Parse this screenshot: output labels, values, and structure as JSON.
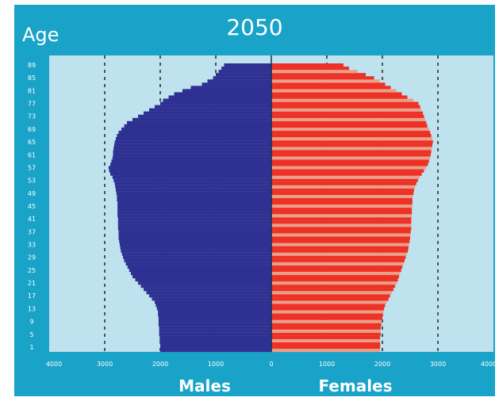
{
  "chart_data": {
    "type": "bar",
    "subtype": "population-pyramid",
    "title": "2050",
    "ylabel": "Age",
    "xlabel_left": "Males",
    "xlabel_right": "Females",
    "xlim": [
      -4000,
      4000
    ],
    "x_ticks": [
      {
        "value": -4000,
        "label": "4000"
      },
      {
        "value": -3000,
        "label": "3000"
      },
      {
        "value": -2000,
        "label": "2000"
      },
      {
        "value": -1000,
        "label": "1000"
      },
      {
        "value": 0,
        "label": "0"
      },
      {
        "value": 1000,
        "label": "1000"
      },
      {
        "value": 2000,
        "label": "2000"
      },
      {
        "value": 3000,
        "label": "3000"
      },
      {
        "value": 4000,
        "label": "4000"
      }
    ],
    "age_tick_labels": [
      "89",
      "85",
      "81",
      "77",
      "73",
      "69",
      "65",
      "61",
      "57",
      "53",
      "49",
      "45",
      "41",
      "37",
      "33",
      "29",
      "25",
      "21",
      "17",
      "13",
      "9",
      "5",
      "1"
    ],
    "age_range": [
      0,
      90
    ],
    "grid": true,
    "series": [
      {
        "name": "Males",
        "color": "#2e3192",
        "ages": [
          0,
          1,
          2,
          3,
          4,
          5,
          6,
          7,
          8,
          9,
          10,
          11,
          12,
          13,
          14,
          15,
          16,
          17,
          18,
          19,
          20,
          21,
          22,
          23,
          24,
          25,
          26,
          27,
          28,
          29,
          30,
          31,
          32,
          33,
          34,
          35,
          36,
          37,
          38,
          39,
          40,
          41,
          42,
          43,
          44,
          45,
          46,
          47,
          48,
          49,
          50,
          51,
          52,
          53,
          54,
          55,
          56,
          57,
          58,
          59,
          60,
          61,
          62,
          63,
          64,
          65,
          66,
          67,
          68,
          69,
          70,
          71,
          72,
          73,
          74,
          75,
          76,
          77,
          78,
          79,
          80,
          81,
          82,
          83,
          84,
          85,
          86,
          87,
          88,
          89
        ],
        "values": [
          2000,
          2000,
          2000,
          2010,
          2010,
          2020,
          2020,
          2020,
          2030,
          2030,
          2030,
          2040,
          2040,
          2060,
          2080,
          2100,
          2150,
          2200,
          2250,
          2300,
          2350,
          2400,
          2450,
          2500,
          2530,
          2560,
          2590,
          2620,
          2650,
          2670,
          2690,
          2710,
          2720,
          2730,
          2740,
          2750,
          2750,
          2750,
          2760,
          2760,
          2760,
          2760,
          2770,
          2770,
          2770,
          2770,
          2770,
          2780,
          2780,
          2790,
          2800,
          2810,
          2820,
          2840,
          2860,
          2900,
          2920,
          2930,
          2900,
          2880,
          2860,
          2850,
          2850,
          2840,
          2830,
          2820,
          2800,
          2780,
          2750,
          2700,
          2650,
          2600,
          2500,
          2400,
          2300,
          2200,
          2100,
          2000,
          1950,
          1850,
          1750,
          1600,
          1450,
          1250,
          1150,
          1050,
          1000,
          950,
          900,
          850
        ]
      },
      {
        "name": "Females",
        "color": "#ee3124",
        "stripe_color": "#e8a08a",
        "ages": [
          0,
          1,
          2,
          3,
          4,
          5,
          6,
          7,
          8,
          9,
          10,
          11,
          12,
          13,
          14,
          15,
          16,
          17,
          18,
          19,
          20,
          21,
          22,
          23,
          24,
          25,
          26,
          27,
          28,
          29,
          30,
          31,
          32,
          33,
          34,
          35,
          36,
          37,
          38,
          39,
          40,
          41,
          42,
          43,
          44,
          45,
          46,
          47,
          48,
          49,
          50,
          51,
          52,
          53,
          54,
          55,
          56,
          57,
          58,
          59,
          60,
          61,
          62,
          63,
          64,
          65,
          66,
          67,
          68,
          69,
          70,
          71,
          72,
          73,
          74,
          75,
          76,
          77,
          78,
          79,
          80,
          81,
          82,
          83,
          84,
          85,
          86,
          87,
          88,
          89
        ],
        "values": [
          1960,
          1960,
          1960,
          1960,
          1960,
          1970,
          1970,
          1970,
          1980,
          1990,
          2000,
          2010,
          2020,
          2030,
          2050,
          2080,
          2110,
          2140,
          2170,
          2200,
          2230,
          2260,
          2280,
          2300,
          2320,
          2340,
          2360,
          2380,
          2400,
          2420,
          2440,
          2460,
          2470,
          2480,
          2490,
          2500,
          2510,
          2510,
          2520,
          2520,
          2520,
          2520,
          2530,
          2530,
          2530,
          2540,
          2540,
          2540,
          2550,
          2560,
          2570,
          2590,
          2610,
          2640,
          2670,
          2710,
          2750,
          2790,
          2820,
          2840,
          2860,
          2870,
          2880,
          2890,
          2900,
          2910,
          2900,
          2880,
          2860,
          2840,
          2810,
          2790,
          2770,
          2750,
          2730,
          2700,
          2680,
          2650,
          2560,
          2450,
          2350,
          2250,
          2150,
          2050,
          1950,
          1850,
          1700,
          1550,
          1400,
          1300
        ]
      }
    ]
  }
}
